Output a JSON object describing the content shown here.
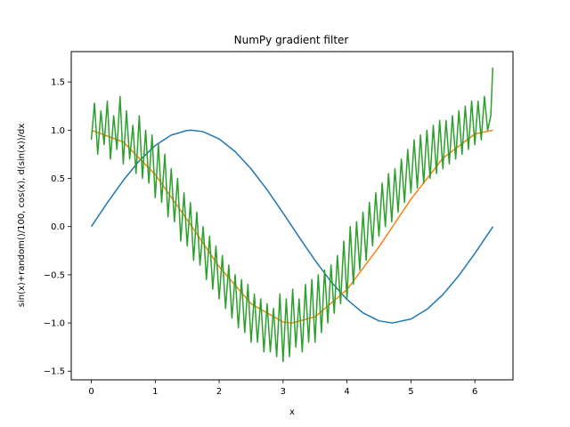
{
  "chart_data": {
    "type": "line",
    "title": "NumPy gradient filter",
    "xlabel": "x",
    "ylabel": "sin(x)+random()/100, cos(x), d(sin(x))/dx",
    "xlim": [
      -0.314,
      6.597
    ],
    "ylim": [
      -1.59,
      1.815
    ],
    "xticks": [
      0,
      1,
      2,
      3,
      4,
      5,
      6
    ],
    "xtick_labels": [
      "0",
      "1",
      "2",
      "3",
      "4",
      "5",
      "6"
    ],
    "yticks": [
      -1.5,
      -1.0,
      -0.5,
      0.0,
      0.5,
      1.0,
      1.5
    ],
    "ytick_labels": [
      "−1.5",
      "−1.0",
      "−0.5",
      "0.0",
      "0.5",
      "1.0",
      "1.5"
    ],
    "grid": false,
    "series": [
      {
        "color": "#1f77b4",
        "x": [
          0,
          0.25,
          0.5,
          0.75,
          1.0,
          1.25,
          1.5,
          1.5708,
          1.75,
          2.0,
          2.25,
          2.5,
          2.75,
          3.0,
          3.25,
          3.5,
          3.75,
          4.0,
          4.25,
          4.5,
          4.7124,
          5.0,
          5.25,
          5.5,
          5.75,
          6.0,
          6.2832
        ],
        "y": [
          0.0,
          0.247,
          0.479,
          0.682,
          0.841,
          0.949,
          0.997,
          1.0,
          0.984,
          0.909,
          0.778,
          0.598,
          0.382,
          0.141,
          -0.108,
          -0.351,
          -0.572,
          -0.757,
          -0.895,
          -0.978,
          -1.0,
          -0.959,
          -0.859,
          -0.706,
          -0.508,
          -0.279,
          0.0
        ]
      },
      {
        "color": "#ff7f0e",
        "x": [
          0,
          0.5,
          1.0,
          1.5,
          2.0,
          2.5,
          3.0,
          3.1416,
          3.5,
          4.0,
          4.5,
          5.0,
          5.5,
          6.0,
          6.2832
        ],
        "y": [
          1.0,
          0.878,
          0.54,
          0.071,
          -0.416,
          -0.801,
          -0.99,
          -1.0,
          -0.936,
          -0.654,
          -0.211,
          0.284,
          0.709,
          0.96,
          1.0
        ]
      },
      {
        "color": "#2ca02c",
        "x": [
          0,
          0.05,
          0.1,
          0.15,
          0.2,
          0.25,
          0.3,
          0.35,
          0.4,
          0.45,
          0.5,
          0.55,
          0.6,
          0.65,
          0.7,
          0.75,
          0.8,
          0.85,
          0.9,
          0.95,
          1.0,
          1.05,
          1.1,
          1.15,
          1.2,
          1.25,
          1.3,
          1.35,
          1.4,
          1.45,
          1.5,
          1.55,
          1.6,
          1.65,
          1.7,
          1.75,
          1.8,
          1.85,
          1.9,
          1.95,
          2.0,
          2.05,
          2.1,
          2.15,
          2.2,
          2.25,
          2.3,
          2.35,
          2.4,
          2.45,
          2.5,
          2.55,
          2.6,
          2.65,
          2.7,
          2.75,
          2.8,
          2.85,
          2.9,
          2.95,
          3.0,
          3.05,
          3.1,
          3.15,
          3.2,
          3.25,
          3.3,
          3.35,
          3.4,
          3.45,
          3.5,
          3.55,
          3.6,
          3.65,
          3.7,
          3.75,
          3.8,
          3.85,
          3.9,
          3.95,
          4.0,
          4.05,
          4.1,
          4.15,
          4.2,
          4.25,
          4.3,
          4.35,
          4.4,
          4.45,
          4.5,
          4.55,
          4.6,
          4.65,
          4.7,
          4.75,
          4.8,
          4.85,
          4.9,
          4.95,
          5.0,
          5.05,
          5.1,
          5.15,
          5.2,
          5.25,
          5.3,
          5.35,
          5.4,
          5.45,
          5.5,
          5.55,
          5.6,
          5.65,
          5.7,
          5.75,
          5.8,
          5.85,
          5.9,
          5.95,
          6.0,
          6.05,
          6.1,
          6.15,
          6.2,
          6.25,
          6.28
        ],
        "y": [
          0.9,
          1.28,
          0.75,
          1.2,
          0.85,
          1.3,
          0.7,
          1.15,
          0.8,
          1.35,
          0.65,
          1.2,
          0.7,
          1.05,
          0.55,
          1.15,
          0.5,
          1.0,
          0.45,
          0.95,
          0.3,
          0.85,
          0.25,
          0.75,
          0.1,
          0.6,
          0.05,
          0.5,
          -0.15,
          0.35,
          -0.2,
          0.25,
          -0.35,
          0.15,
          -0.4,
          0.0,
          -0.55,
          -0.1,
          -0.65,
          -0.2,
          -0.75,
          -0.3,
          -0.85,
          -0.4,
          -0.95,
          -0.5,
          -1.05,
          -0.55,
          -1.1,
          -0.6,
          -1.2,
          -0.7,
          -1.2,
          -0.75,
          -1.3,
          -0.8,
          -1.3,
          -0.85,
          -1.35,
          -0.7,
          -1.4,
          -0.75,
          -1.35,
          -0.65,
          -1.25,
          -0.75,
          -1.3,
          -0.6,
          -1.2,
          -0.55,
          -1.2,
          -0.5,
          -1.1,
          -0.45,
          -1.0,
          -0.4,
          -0.9,
          -0.3,
          -0.8,
          -0.15,
          -0.75,
          0.0,
          -0.6,
          0.05,
          -0.45,
          0.15,
          -0.35,
          0.25,
          -0.2,
          0.35,
          -0.1,
          0.45,
          0.0,
          0.55,
          0.05,
          0.6,
          0.15,
          0.7,
          0.25,
          0.8,
          0.35,
          0.9,
          0.4,
          0.95,
          0.45,
          1.0,
          0.5,
          1.05,
          0.55,
          1.1,
          0.6,
          1.1,
          0.65,
          1.15,
          0.7,
          1.2,
          0.75,
          1.25,
          0.8,
          1.3,
          0.85,
          1.3,
          0.9,
          1.35,
          1.0,
          1.15,
          1.65
        ]
      }
    ]
  }
}
